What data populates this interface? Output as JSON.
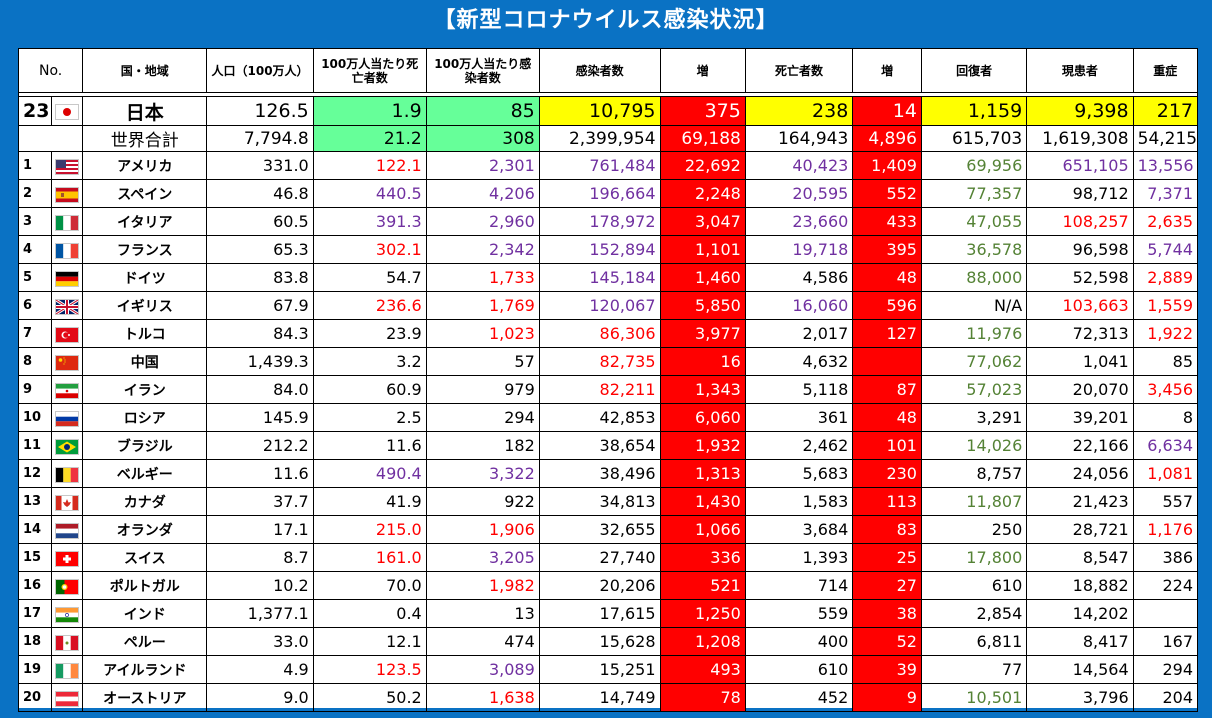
{
  "title": "【新型コロナウイルス感染状況】",
  "headers": {
    "no": "No.",
    "country": "国・地域",
    "population": "人口（100万人）",
    "deaths_per_million": "100万人当たり死亡者数",
    "cases_per_million": "100万人当たり感染者数",
    "cases": "感染者数",
    "cases_increase": "増",
    "deaths": "死亡者数",
    "deaths_increase": "増",
    "recovered": "回復者",
    "active": "現患者",
    "serious": "重症"
  },
  "japan": {
    "no": "23",
    "flag": "japan",
    "name": "日本",
    "population": "126.5",
    "deaths_per_million": "1.9",
    "cases_per_million": "85",
    "cases": "10,795",
    "cases_increase": "375",
    "deaths": "238",
    "deaths_increase": "14",
    "recovered": "1,159",
    "active": "9,398",
    "serious": "217"
  },
  "world": {
    "name": "世界合計",
    "population": "7,794.8",
    "deaths_per_million": "21.2",
    "cases_per_million": "308",
    "cases": "2,399,954",
    "cases_increase": "69,188",
    "deaths": "164,943",
    "deaths_increase": "4,896",
    "recovered": "615,703",
    "active": "1,619,308",
    "serious": "54,215"
  },
  "colors": {
    "background": "#0a72c4",
    "yellow": "#ffff00",
    "green": "#66ff99",
    "red": "#ff0000",
    "purple": "#7030a0",
    "olive_green": "#548235"
  },
  "rows": [
    {
      "no": "1",
      "flag": "usa",
      "name": "アメリカ",
      "population": "331.0",
      "deaths_per_million": "122.1",
      "cases_per_million": "2,301",
      "cases": "761,484",
      "cases_increase": "22,692",
      "deaths": "40,423",
      "deaths_increase": "1,409",
      "recovered": "69,956",
      "active": "651,105",
      "serious": "13,556",
      "c": [
        "r",
        "p",
        "p",
        "",
        "p",
        "",
        "g",
        "p",
        "p"
      ]
    },
    {
      "no": "2",
      "flag": "spain",
      "name": "スペイン",
      "population": "46.8",
      "deaths_per_million": "440.5",
      "cases_per_million": "4,206",
      "cases": "196,664",
      "cases_increase": "2,248",
      "deaths": "20,595",
      "deaths_increase": "552",
      "recovered": "77,357",
      "active": "98,712",
      "serious": "7,371",
      "c": [
        "p",
        "p",
        "p",
        "",
        "p",
        "",
        "g",
        "",
        "p"
      ]
    },
    {
      "no": "3",
      "flag": "italy",
      "name": "イタリア",
      "population": "60.5",
      "deaths_per_million": "391.3",
      "cases_per_million": "2,960",
      "cases": "178,972",
      "cases_increase": "3,047",
      "deaths": "23,660",
      "deaths_increase": "433",
      "recovered": "47,055",
      "active": "108,257",
      "serious": "2,635",
      "c": [
        "p",
        "p",
        "p",
        "",
        "p",
        "",
        "g",
        "r",
        "r"
      ]
    },
    {
      "no": "4",
      "flag": "france",
      "name": "フランス",
      "population": "65.3",
      "deaths_per_million": "302.1",
      "cases_per_million": "2,342",
      "cases": "152,894",
      "cases_increase": "1,101",
      "deaths": "19,718",
      "deaths_increase": "395",
      "recovered": "36,578",
      "active": "96,598",
      "serious": "5,744",
      "c": [
        "r",
        "p",
        "p",
        "",
        "p",
        "",
        "g",
        "",
        "p"
      ]
    },
    {
      "no": "5",
      "flag": "germany",
      "name": "ドイツ",
      "population": "83.8",
      "deaths_per_million": "54.7",
      "cases_per_million": "1,733",
      "cases": "145,184",
      "cases_increase": "1,460",
      "deaths": "4,586",
      "deaths_increase": "48",
      "recovered": "88,000",
      "active": "52,598",
      "serious": "2,889",
      "c": [
        "",
        "r",
        "p",
        "",
        "",
        "",
        "g",
        "",
        "r"
      ]
    },
    {
      "no": "6",
      "flag": "uk",
      "name": "イギリス",
      "population": "67.9",
      "deaths_per_million": "236.6",
      "cases_per_million": "1,769",
      "cases": "120,067",
      "cases_increase": "5,850",
      "deaths": "16,060",
      "deaths_increase": "596",
      "recovered": "N/A",
      "active": "103,663",
      "serious": "1,559",
      "c": [
        "r",
        "r",
        "p",
        "",
        "p",
        "",
        "",
        "r",
        "r"
      ]
    },
    {
      "no": "7",
      "flag": "turkey",
      "name": "トルコ",
      "population": "84.3",
      "deaths_per_million": "23.9",
      "cases_per_million": "1,023",
      "cases": "86,306",
      "cases_increase": "3,977",
      "deaths": "2,017",
      "deaths_increase": "127",
      "recovered": "11,976",
      "active": "72,313",
      "serious": "1,922",
      "c": [
        "",
        "r",
        "r",
        "",
        "",
        "",
        "g",
        "",
        "r"
      ]
    },
    {
      "no": "8",
      "flag": "china",
      "name": "中国",
      "population": "1,439.3",
      "deaths_per_million": "3.2",
      "cases_per_million": "57",
      "cases": "82,735",
      "cases_increase": "16",
      "deaths": "4,632",
      "deaths_increase": "",
      "recovered": "77,062",
      "active": "1,041",
      "serious": "85",
      "c": [
        "",
        "",
        "r",
        "",
        "",
        "",
        "g",
        "",
        ""
      ]
    },
    {
      "no": "9",
      "flag": "iran",
      "name": "イラン",
      "population": "84.0",
      "deaths_per_million": "60.9",
      "cases_per_million": "979",
      "cases": "82,211",
      "cases_increase": "1,343",
      "deaths": "5,118",
      "deaths_increase": "87",
      "recovered": "57,023",
      "active": "20,070",
      "serious": "3,456",
      "c": [
        "",
        "",
        "r",
        "",
        "",
        "",
        "g",
        "",
        "r"
      ]
    },
    {
      "no": "10",
      "flag": "russia",
      "name": "ロシア",
      "population": "145.9",
      "deaths_per_million": "2.5",
      "cases_per_million": "294",
      "cases": "42,853",
      "cases_increase": "6,060",
      "deaths": "361",
      "deaths_increase": "48",
      "recovered": "3,291",
      "active": "39,201",
      "serious": "8",
      "c": [
        "",
        "",
        "",
        "",
        "",
        "",
        "",
        "",
        ""
      ]
    },
    {
      "no": "11",
      "flag": "brazil",
      "name": "ブラジル",
      "population": "212.2",
      "deaths_per_million": "11.6",
      "cases_per_million": "182",
      "cases": "38,654",
      "cases_increase": "1,932",
      "deaths": "2,462",
      "deaths_increase": "101",
      "recovered": "14,026",
      "active": "22,166",
      "serious": "6,634",
      "c": [
        "",
        "",
        "",
        "",
        "",
        "",
        "g",
        "",
        "p"
      ]
    },
    {
      "no": "12",
      "flag": "belgium",
      "name": "ベルギー",
      "population": "11.6",
      "deaths_per_million": "490.4",
      "cases_per_million": "3,322",
      "cases": "38,496",
      "cases_increase": "1,313",
      "deaths": "5,683",
      "deaths_increase": "230",
      "recovered": "8,757",
      "active": "24,056",
      "serious": "1,081",
      "c": [
        "p",
        "p",
        "",
        "",
        "",
        "",
        "",
        "",
        "r"
      ]
    },
    {
      "no": "13",
      "flag": "canada",
      "name": "カナダ",
      "population": "37.7",
      "deaths_per_million": "41.9",
      "cases_per_million": "922",
      "cases": "34,813",
      "cases_increase": "1,430",
      "deaths": "1,583",
      "deaths_increase": "113",
      "recovered": "11,807",
      "active": "21,423",
      "serious": "557",
      "c": [
        "",
        "",
        "",
        "",
        "",
        "",
        "g",
        "",
        ""
      ]
    },
    {
      "no": "14",
      "flag": "netherlands",
      "name": "オランダ",
      "population": "17.1",
      "deaths_per_million": "215.0",
      "cases_per_million": "1,906",
      "cases": "32,655",
      "cases_increase": "1,066",
      "deaths": "3,684",
      "deaths_increase": "83",
      "recovered": "250",
      "active": "28,721",
      "serious": "1,176",
      "c": [
        "r",
        "r",
        "",
        "",
        "",
        "",
        "",
        "",
        "r"
      ]
    },
    {
      "no": "15",
      "flag": "switzerland",
      "name": "スイス",
      "population": "8.7",
      "deaths_per_million": "161.0",
      "cases_per_million": "3,205",
      "cases": "27,740",
      "cases_increase": "336",
      "deaths": "1,393",
      "deaths_increase": "25",
      "recovered": "17,800",
      "active": "8,547",
      "serious": "386",
      "c": [
        "r",
        "p",
        "",
        "",
        "",
        "",
        "g",
        "",
        ""
      ]
    },
    {
      "no": "16",
      "flag": "portugal",
      "name": "ポルトガル",
      "population": "10.2",
      "deaths_per_million": "70.0",
      "cases_per_million": "1,982",
      "cases": "20,206",
      "cases_increase": "521",
      "deaths": "714",
      "deaths_increase": "27",
      "recovered": "610",
      "active": "18,882",
      "serious": "224",
      "c": [
        "",
        "r",
        "",
        "",
        "",
        "",
        "",
        "",
        ""
      ]
    },
    {
      "no": "17",
      "flag": "india",
      "name": "インド",
      "population": "1,377.1",
      "deaths_per_million": "0.4",
      "cases_per_million": "13",
      "cases": "17,615",
      "cases_increase": "1,250",
      "deaths": "559",
      "deaths_increase": "38",
      "recovered": "2,854",
      "active": "14,202",
      "serious": "",
      "c": [
        "",
        "",
        "",
        "",
        "",
        "",
        "",
        "",
        ""
      ]
    },
    {
      "no": "18",
      "flag": "peru",
      "name": "ペルー",
      "population": "33.0",
      "deaths_per_million": "12.1",
      "cases_per_million": "474",
      "cases": "15,628",
      "cases_increase": "1,208",
      "deaths": "400",
      "deaths_increase": "52",
      "recovered": "6,811",
      "active": "8,417",
      "serious": "167",
      "c": [
        "",
        "",
        "",
        "",
        "",
        "",
        "",
        "",
        ""
      ]
    },
    {
      "no": "19",
      "flag": "ireland",
      "name": "アイルランド",
      "population": "4.9",
      "deaths_per_million": "123.5",
      "cases_per_million": "3,089",
      "cases": "15,251",
      "cases_increase": "493",
      "deaths": "610",
      "deaths_increase": "39",
      "recovered": "77",
      "active": "14,564",
      "serious": "294",
      "c": [
        "r",
        "p",
        "",
        "",
        "",
        "",
        "",
        "",
        ""
      ]
    },
    {
      "no": "20",
      "flag": "austria",
      "name": "オーストリア",
      "population": "9.0",
      "deaths_per_million": "50.2",
      "cases_per_million": "1,638",
      "cases": "14,749",
      "cases_increase": "78",
      "deaths": "452",
      "deaths_increase": "9",
      "recovered": "10,501",
      "active": "3,796",
      "serious": "204",
      "c": [
        "",
        "r",
        "",
        "",
        "",
        "",
        "g",
        "",
        ""
      ]
    }
  ]
}
